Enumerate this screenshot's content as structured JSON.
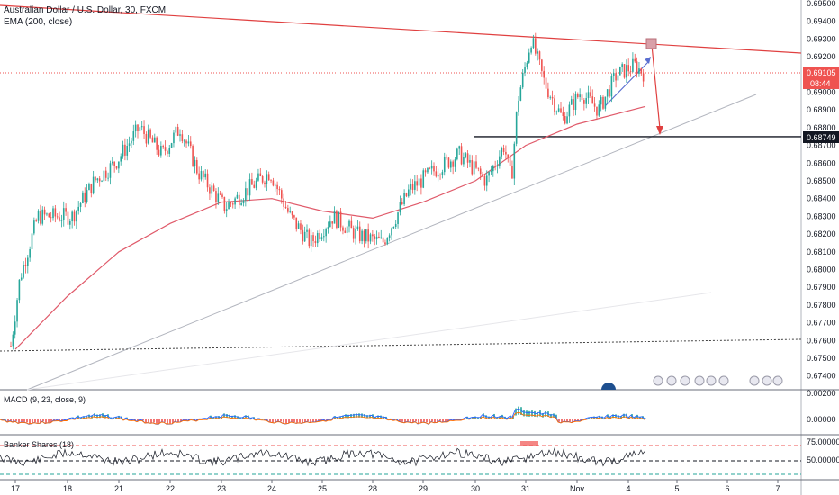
{
  "header": {
    "symbol_line": "Australian Dollar / U.S. Dollar, 30, FXCM",
    "indicator_line": "EMA (200, close)"
  },
  "price_axis": {
    "ticks": [
      "0.69500",
      "0.69400",
      "0.69300",
      "0.69200",
      "0.69100",
      "0.69000",
      "0.68900",
      "0.68800",
      "0.68700",
      "0.68600",
      "0.68500",
      "0.68400",
      "0.68300",
      "0.68200",
      "0.68100",
      "0.68000",
      "0.67900",
      "0.67800",
      "0.67700",
      "0.67600",
      "0.67500",
      "0.67400"
    ],
    "current_price_label": "0.69105",
    "countdown_label": "08:44",
    "level_label": "0.68749"
  },
  "macd_pane": {
    "label": "MACD (9, 23, close, 9)",
    "ticks": [
      "0.00200",
      "0.00000"
    ]
  },
  "banker_pane": {
    "label": "Banker Shares (18)",
    "ticks": [
      "75.00000",
      "50.00000"
    ]
  },
  "time_axis": {
    "ticks": [
      "17",
      "18",
      "21",
      "22",
      "23",
      "24",
      "25",
      "28",
      "29",
      "30",
      "31",
      "Nov",
      "4",
      "5",
      "6",
      "7"
    ]
  },
  "colors": {
    "up": "#26a69a",
    "down": "#ef5350",
    "ema": "#e05a6a",
    "trendline": "#e04040",
    "support": "#b2b5be",
    "level": "#131722"
  },
  "chart_data": {
    "type": "candlestick",
    "title": "Australian Dollar / U.S. Dollar, 30, FXCM",
    "x": [
      "17",
      "18",
      "21",
      "22",
      "23",
      "24",
      "25",
      "28",
      "29",
      "30",
      "31",
      "Nov",
      "4"
    ],
    "close_approx": [
      0.6754,
      0.6828,
      0.687,
      0.6862,
      0.6838,
      0.6843,
      0.6823,
      0.6818,
      0.685,
      0.686,
      0.6915,
      0.6895,
      0.691
    ],
    "ylim": [
      0.674,
      0.695
    ],
    "current_price": 0.69105,
    "horizontal_level": 0.68749,
    "series": [
      {
        "name": "EMA (200, close)",
        "values": [
          0.6755,
          0.6785,
          0.681,
          0.6826,
          0.6838,
          0.684,
          0.6833,
          0.6829,
          0.6838,
          0.685,
          0.687,
          0.6882,
          0.6892
        ]
      }
    ],
    "indicators": [
      "MACD (9, 23, close, 9)",
      "Banker Shares (18)"
    ]
  }
}
